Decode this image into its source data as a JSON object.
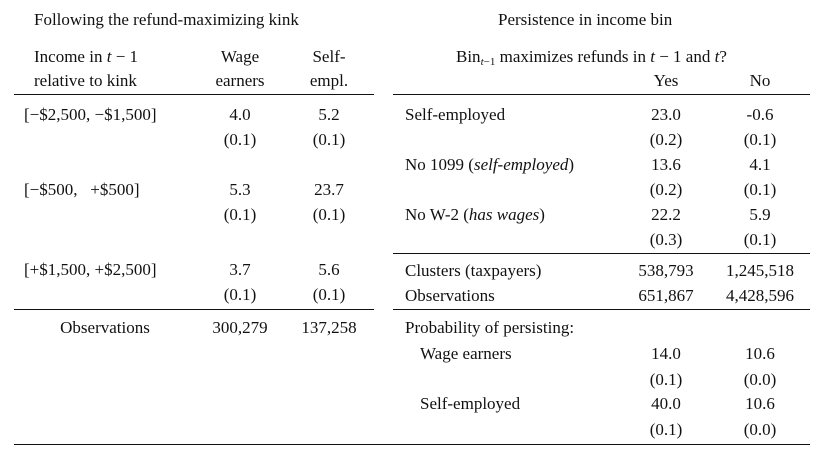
{
  "left": {
    "title": "Following the refund-maximizing kink",
    "header": {
      "col1_line1": "Income in t − 1",
      "col1_line2": "relative to kink",
      "col2_line1": "Wage",
      "col2_line2": "earners",
      "col3_line1": "Self-",
      "col3_line2": "empl."
    },
    "rows": [
      {
        "label": "[−$2,500, −$1,500]",
        "wage": "4.0",
        "wage_se": "(0.1)",
        "self": "5.2",
        "self_se": "(0.1)"
      },
      {
        "label": "[−$500,   +$500]",
        "wage": "5.3",
        "wage_se": "(0.1)",
        "self": "23.7",
        "self_se": "(0.1)"
      },
      {
        "label": "[+$1,500, +$2,500]",
        "wage": "3.7",
        "wage_se": "(0.1)",
        "self": "5.6",
        "self_se": "(0.1)"
      }
    ],
    "observations": {
      "label": "Observations",
      "wage": "300,279",
      "self": "137,258"
    }
  },
  "right": {
    "title": "Persistence in income bin",
    "header": {
      "question_pre": "Bin",
      "question_sub": "t−1",
      "question_post": " maximizes refunds in t − 1 and t?",
      "yes": "Yes",
      "no": "No"
    },
    "rows": [
      {
        "label": "Self-employed",
        "label_italic": "",
        "label_post": "",
        "yes": "23.0",
        "yes_se": "(0.2)",
        "no": "-0.6",
        "no_se": "(0.1)"
      },
      {
        "label": "No 1099 (",
        "label_italic": "self-employed",
        "label_post": ")",
        "yes": "13.6",
        "yes_se": "(0.2)",
        "no": "4.1",
        "no_se": "(0.1)"
      },
      {
        "label": "No W-2 (",
        "label_italic": "has wages",
        "label_post": ")",
        "yes": "22.2",
        "yes_se": "(0.3)",
        "no": "5.9",
        "no_se": "(0.1)"
      }
    ],
    "clusters": {
      "label": "Clusters (taxpayers)",
      "yes": "538,793",
      "no": "1,245,518"
    },
    "observations": {
      "label": "Observations",
      "yes": "651,867",
      "no": "4,428,596"
    },
    "probability": {
      "label": "Probability of persisting:",
      "rows": [
        {
          "label": "Wage earners",
          "yes": "14.0",
          "yes_se": "(0.1)",
          "no": "10.6",
          "no_se": "(0.0)"
        },
        {
          "label": "Self-employed",
          "yes": "40.0",
          "yes_se": "(0.1)",
          "no": "10.6",
          "no_se": "(0.0)"
        }
      ]
    }
  }
}
